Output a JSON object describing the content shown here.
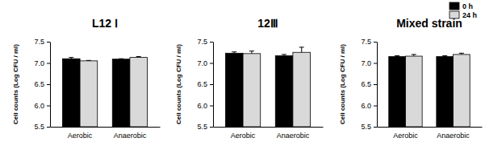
{
  "chart_data": [
    {
      "type": "bar",
      "title": "L12 Ⅰ",
      "ylabel": "Cell counts (Log CFU / ml)",
      "categories": [
        "Aerobic",
        "Anaerobic"
      ],
      "series": [
        {
          "color": "#000000",
          "values": [
            7.1,
            7.09
          ],
          "errors": [
            0.03,
            0.01
          ]
        },
        {
          "color": "#d9d9d9",
          "values": [
            7.05,
            7.13
          ],
          "errors": [
            0.01,
            0.02
          ]
        }
      ],
      "ylim": [
        5.5,
        7.5
      ],
      "yticks": [
        5.5,
        {
          "value": 6,
          "label": "6.0"
        },
        6.5,
        {
          "value": 7,
          "label": "7.0"
        },
        7.5
      ]
    },
    {
      "type": "bar",
      "title": "12Ⅲ",
      "ylabel": "Cell counts (Log CFU / ml)",
      "categories": [
        "Aerobic",
        "Anaerobic"
      ],
      "series": [
        {
          "color": "#000000",
          "values": [
            7.23,
            7.17
          ],
          "errors": [
            0.03,
            0.03
          ]
        },
        {
          "color": "#d9d9d9",
          "values": [
            7.22,
            7.25
          ],
          "errors": [
            0.06,
            0.12
          ]
        }
      ],
      "ylim": [
        5.5,
        7.5
      ],
      "yticks": [
        5.5,
        {
          "value": 6,
          "label": "6.0"
        },
        6.5,
        {
          "value": 7,
          "label": "7.0"
        },
        7.5
      ]
    },
    {
      "type": "bar",
      "title": "Mixed strain",
      "ylabel": "Cell counts (Log CFU / ml)",
      "categories": [
        "Aerobic",
        "Anaerobic"
      ],
      "series": [
        {
          "name": "0 h",
          "color": "#000000",
          "values": [
            7.15,
            7.15
          ],
          "errors": [
            0.02,
            0.02
          ]
        },
        {
          "name": "24 h",
          "color": "#d9d9d9",
          "values": [
            7.16,
            7.2
          ],
          "errors": [
            0.04,
            0.03
          ]
        }
      ],
      "ylim": [
        5.5,
        7.5
      ],
      "yticks": [
        5.5,
        {
          "value": 6,
          "label": "6.0"
        },
        6.5,
        {
          "value": 7,
          "label": "7.0"
        },
        7.5
      ],
      "legend": "upper right"
    }
  ]
}
